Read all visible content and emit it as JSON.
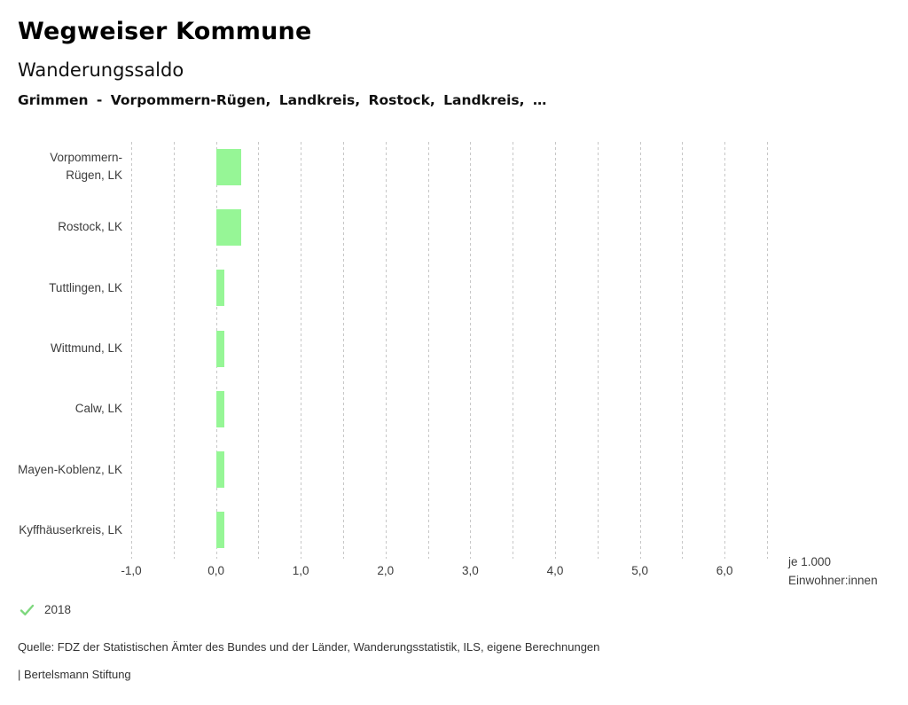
{
  "header": {
    "title": "Wegweiser Kommune",
    "subtitle": "Wanderungssaldo",
    "selection": "Grimmen - Vorpommern-Rügen, Landkreis, Rostock, Landkreis, …"
  },
  "chart_data": {
    "type": "bar",
    "orientation": "horizontal",
    "title": "Wanderungssaldo",
    "categories": [
      "Vorpommern-Rügen, LK",
      "Rostock, LK",
      "Tuttlingen, LK",
      "Wittmund, LK",
      "Calw, LK",
      "Mayen-Koblenz, LK",
      "Kyffhäuserkreis, LK"
    ],
    "series": [
      {
        "name": "2018",
        "values": [
          0.3,
          0.3,
          0.1,
          0.1,
          0.1,
          0.1,
          0.1
        ]
      }
    ],
    "xlim": [
      -1.0,
      6.5
    ],
    "grid_step": 0.5,
    "grid": true,
    "xticks": {
      "values": [
        -1,
        0,
        1,
        2,
        3,
        4,
        5,
        6
      ],
      "labels": [
        "-1,0",
        "0,0",
        "1,0",
        "2,0",
        "3,0",
        "4,0",
        "5,0",
        "6,0"
      ]
    },
    "xlabel": "je 1.000 Einwohner:innen",
    "xlabel_lines": [
      "je 1.000",
      "Einwohner:innen"
    ],
    "bar_color": "#96f696",
    "gridline_color": "#c7c7c7",
    "legend_position": "bottom-left"
  },
  "legend": {
    "check_color": "#7ed87e",
    "items": [
      {
        "label": "2018",
        "checked": true
      }
    ]
  },
  "footer": {
    "source": "Quelle: FDZ der Statistischen Ämter des Bundes und der Länder, Wanderungsstatistik, ILS, eigene Berechnungen",
    "branding": "| Bertelsmann Stiftung"
  }
}
